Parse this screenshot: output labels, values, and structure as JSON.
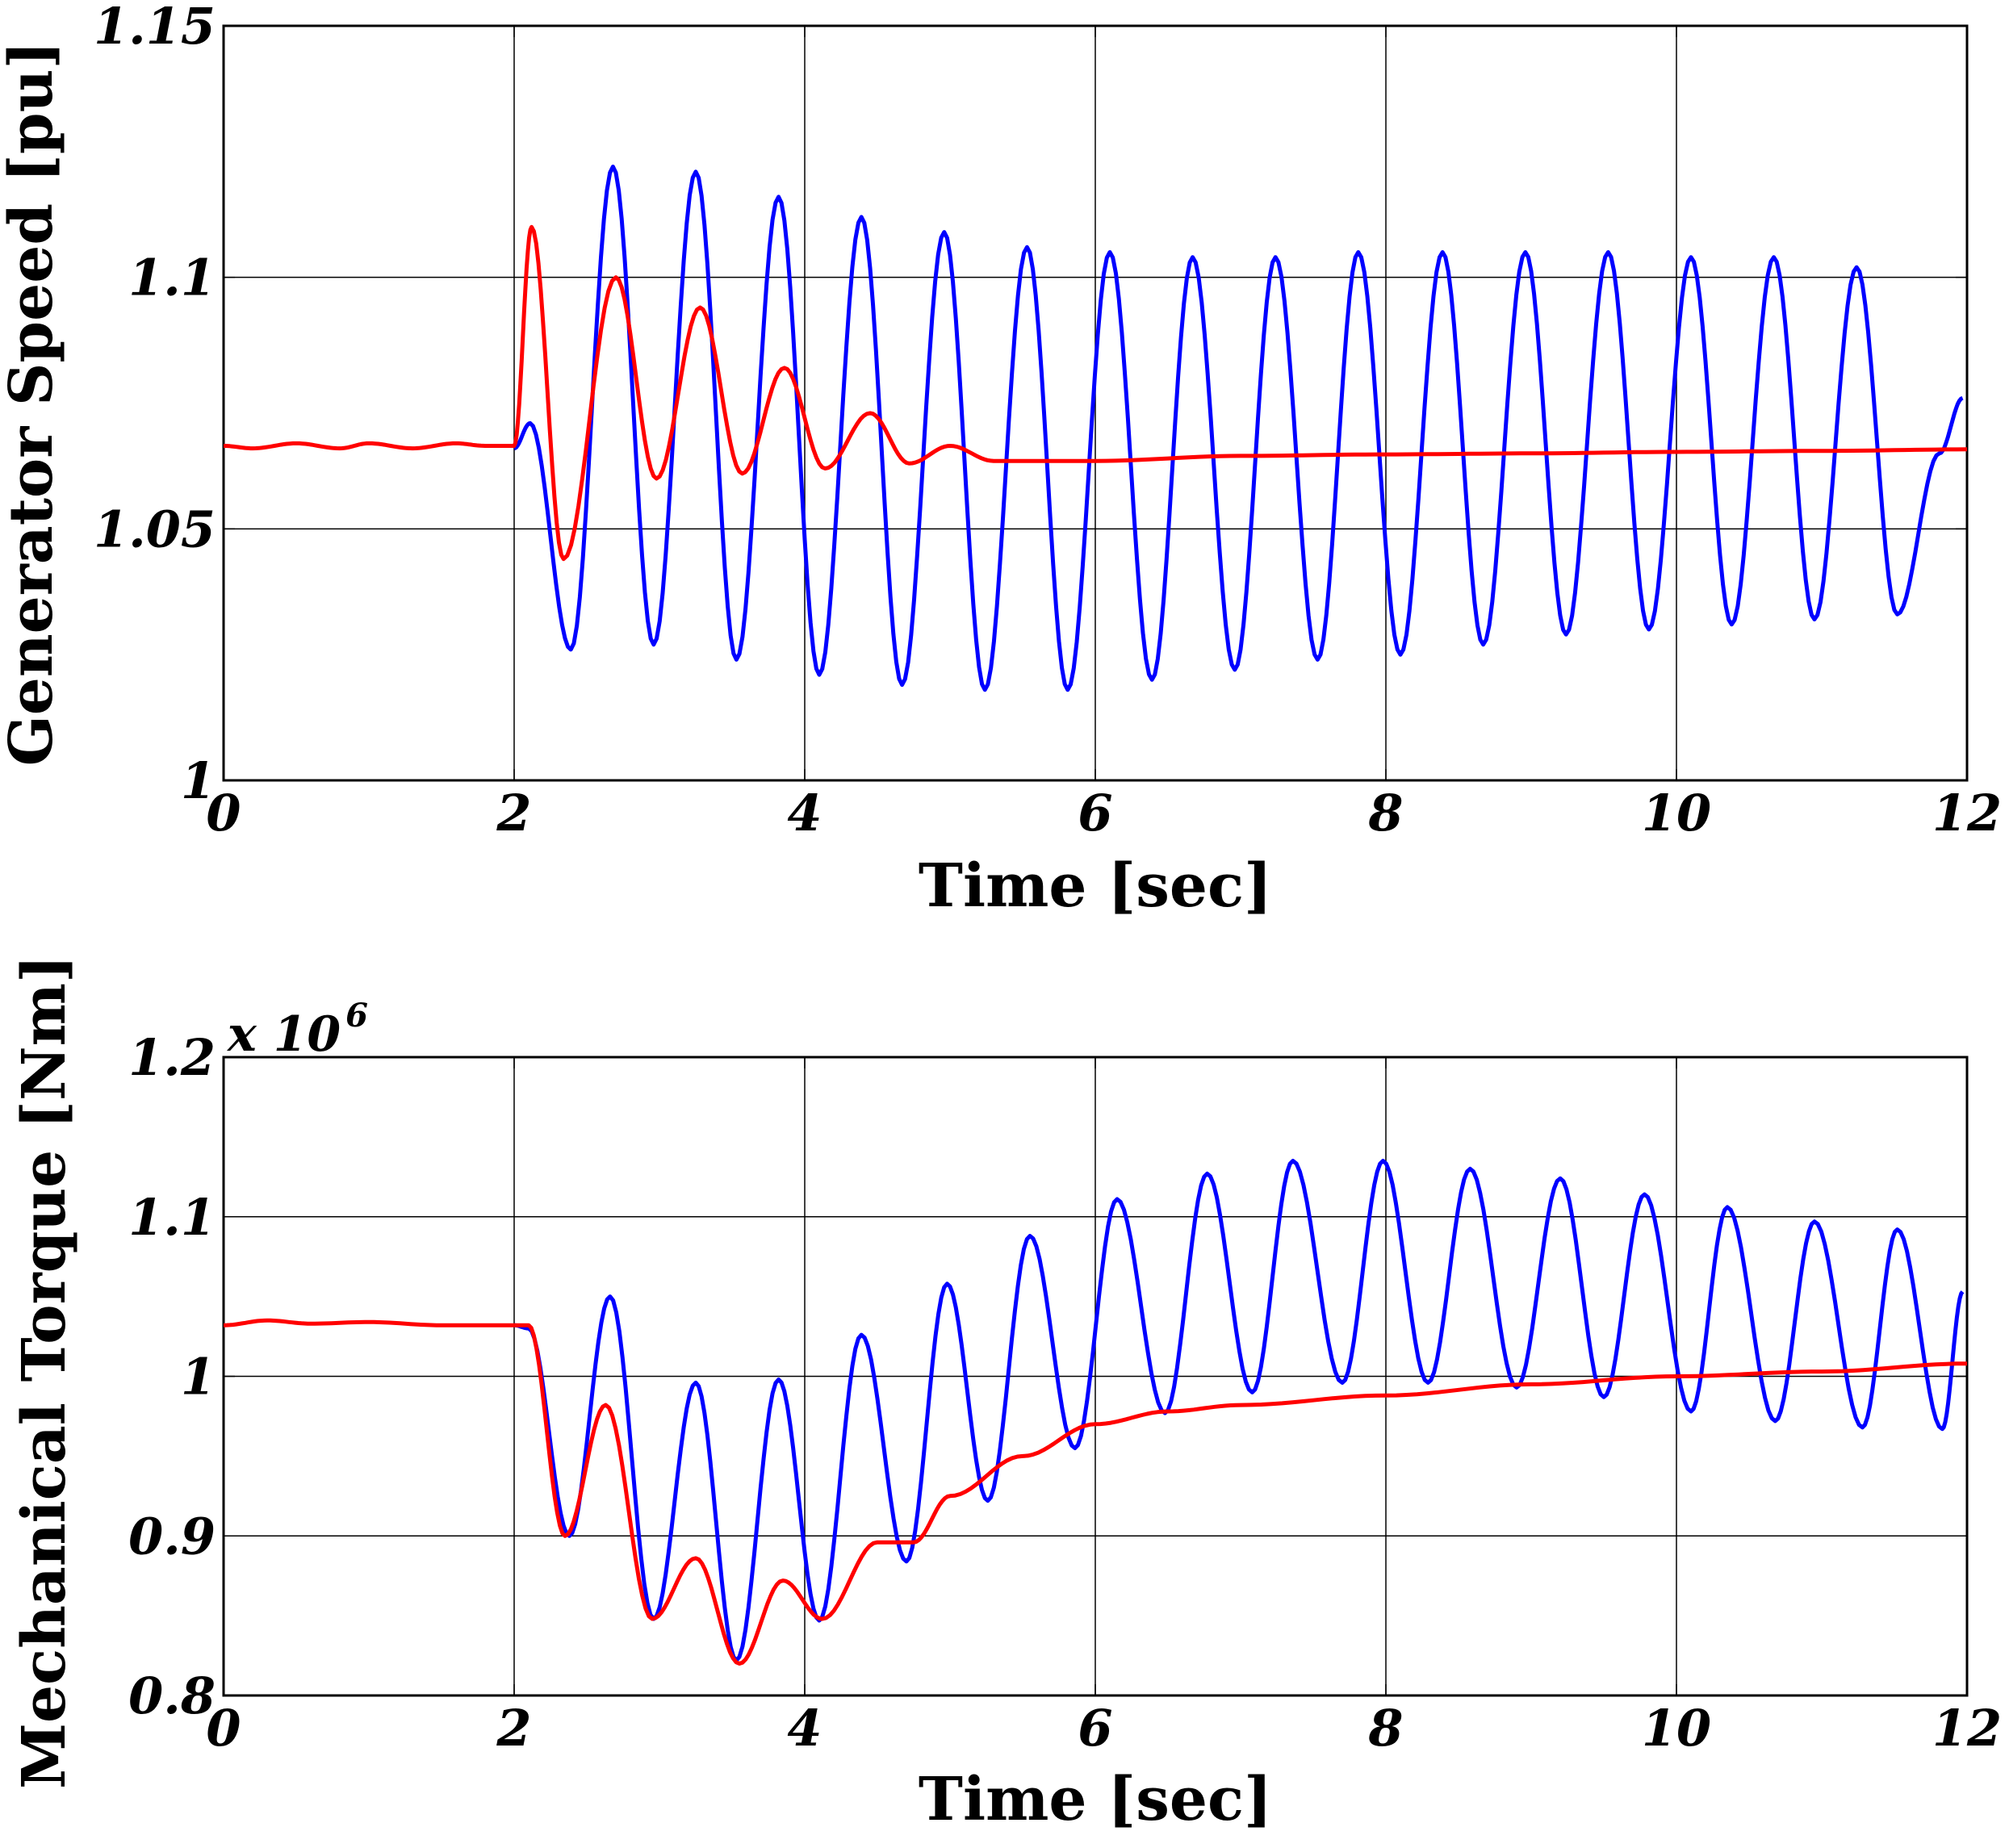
{
  "chart_data": [
    {
      "type": "line",
      "title": "",
      "xlabel": "Time [sec]",
      "ylabel": "Generator Speed [pu]",
      "xlim": [
        0,
        12
      ],
      "ylim": [
        1.0,
        1.15
      ],
      "xticks": [
        0,
        2,
        4,
        6,
        8,
        10,
        12
      ],
      "xtick_labels": [
        "0",
        "2",
        "4",
        "6",
        "8",
        "10",
        "12"
      ],
      "yticks": [
        1.0,
        1.05,
        1.1,
        1.15
      ],
      "ytick_labels": [
        "1",
        "1.05",
        "1.1",
        "1.15"
      ],
      "grid": true,
      "multiplier": "",
      "series": [
        {
          "color": "#0000ff",
          "x": [
            2.0,
            2.11,
            2.39,
            2.68,
            2.96,
            3.25,
            3.53,
            3.82,
            4.1,
            4.39,
            4.67,
            4.96,
            5.24,
            5.53,
            5.81,
            6.1,
            6.39,
            6.67,
            6.96,
            7.24,
            7.53,
            7.81,
            8.1,
            8.39,
            8.67,
            8.96,
            9.24,
            9.53,
            9.81,
            10.1,
            10.38,
            10.67,
            10.95,
            11.24,
            11.52,
            11.81,
            11.97
          ],
          "y": [
            1.066,
            1.071,
            1.026,
            1.122,
            1.027,
            1.121,
            1.024,
            1.116,
            1.021,
            1.112,
            1.019,
            1.109,
            1.018,
            1.106,
            1.018,
            1.105,
            1.02,
            1.104,
            1.022,
            1.104,
            1.024,
            1.105,
            1.025,
            1.105,
            1.027,
            1.105,
            1.029,
            1.105,
            1.03,
            1.104,
            1.031,
            1.104,
            1.032,
            1.102,
            1.033,
            1.065,
            1.076
          ]
        },
        {
          "color": "#ff0000",
          "x": [
            0,
            0.2,
            0.5,
            0.8,
            1.0,
            1.3,
            1.6,
            1.8,
            2.0,
            2.12,
            2.34,
            2.7,
            2.98,
            3.28,
            3.57,
            3.86,
            4.14,
            4.45,
            4.72,
            5.0,
            5.3,
            5.6,
            6.0,
            7.0,
            8.0,
            9.0,
            10.0,
            11.0,
            12.0
          ],
          "y": [
            1.0665,
            1.066,
            1.067,
            1.066,
            1.067,
            1.066,
            1.067,
            1.0665,
            1.0665,
            1.11,
            1.044,
            1.1,
            1.06,
            1.094,
            1.061,
            1.082,
            1.062,
            1.073,
            1.063,
            1.0665,
            1.0635,
            1.0635,
            1.0635,
            1.0645,
            1.0648,
            1.065,
            1.0653,
            1.0655,
            1.0658
          ]
        }
      ]
    },
    {
      "type": "line",
      "title": "",
      "xlabel": "Time [sec]",
      "ylabel": "Mechanical Torque [Nm]",
      "xlim": [
        0,
        12
      ],
      "ylim": [
        0.8,
        1.2
      ],
      "xticks": [
        0,
        2,
        4,
        6,
        8,
        10,
        12
      ],
      "xtick_labels": [
        "0",
        "2",
        "4",
        "6",
        "8",
        "10",
        "12"
      ],
      "yticks": [
        0.8,
        0.9,
        1.0,
        1.1,
        1.2
      ],
      "ytick_labels": [
        "0.8",
        "0.9",
        "1",
        "1.1",
        "1.2"
      ],
      "grid": true,
      "multiplier": "x 10",
      "multiplier_exponent": "6",
      "series": [
        {
          "color": "#0000ff",
          "x": [
            2.0,
            2.1,
            2.38,
            2.66,
            2.96,
            3.25,
            3.53,
            3.82,
            4.1,
            4.39,
            4.7,
            4.98,
            5.26,
            5.55,
            5.86,
            6.15,
            6.48,
            6.77,
            7.08,
            7.36,
            7.7,
            7.98,
            8.29,
            8.58,
            8.9,
            9.2,
            9.5,
            9.78,
            10.1,
            10.35,
            10.68,
            10.95,
            11.28,
            11.52,
            11.83,
            11.97
          ],
          "y": [
            1.032,
            1.03,
            0.9,
            1.05,
            0.848,
            0.996,
            0.822,
            0.998,
            0.847,
            1.026,
            0.884,
            1.058,
            0.922,
            1.088,
            0.955,
            1.111,
            0.977,
            1.127,
            0.99,
            1.135,
            0.996,
            1.135,
            0.996,
            1.13,
            0.993,
            1.124,
            0.987,
            1.114,
            0.978,
            1.106,
            0.972,
            1.097,
            0.968,
            1.092,
            0.967,
            1.053
          ]
        },
        {
          "color": "#ff0000",
          "x": [
            0,
            0.3,
            0.6,
            1.0,
            1.5,
            2.0,
            2.1,
            2.35,
            2.63,
            2.95,
            3.25,
            3.55,
            3.85,
            4.12,
            4.5,
            4.75,
            5.0,
            5.5,
            6.0,
            6.5,
            7.0,
            8.0,
            9.0,
            10.0,
            11.0,
            12.0
          ],
          "y": [
            1.032,
            1.035,
            1.033,
            1.034,
            1.032,
            1.032,
            1.032,
            0.9,
            0.982,
            0.848,
            0.886,
            0.82,
            0.872,
            0.848,
            0.896,
            0.896,
            0.925,
            0.95,
            0.97,
            0.978,
            0.982,
            0.988,
            0.995,
            1.0,
            1.003,
            1.008
          ]
        }
      ]
    }
  ]
}
